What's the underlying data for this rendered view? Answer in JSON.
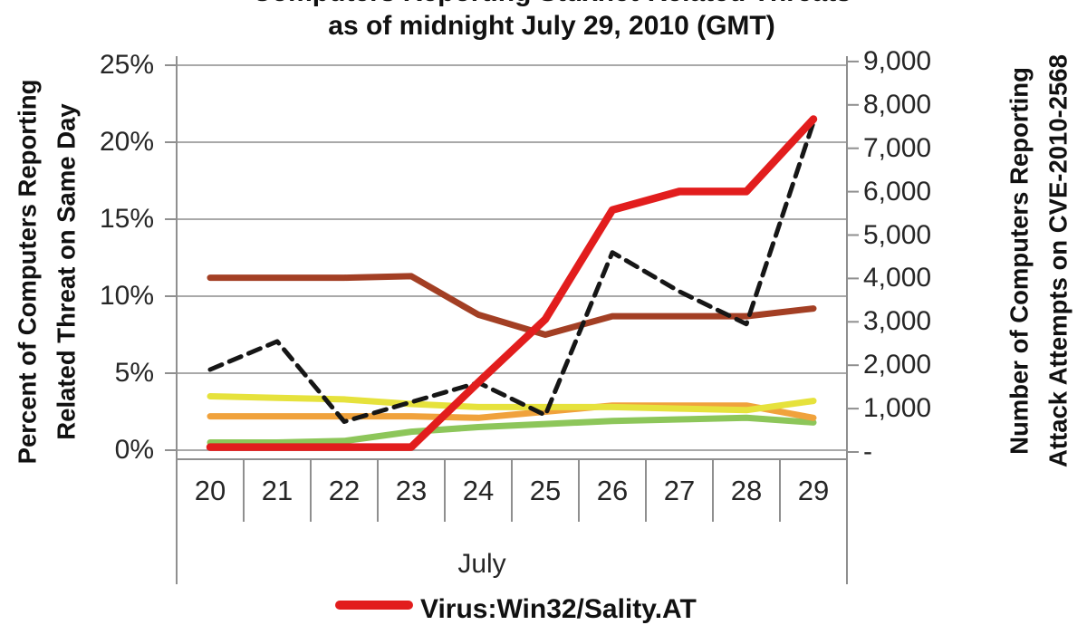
{
  "title_clipped": "Computers Reporting Stuxnet-Related Threats",
  "subtitle": "as of midnight July 29, 2010 (GMT)",
  "left_axis": {
    "title_line1": "Percent of Computers Reporting",
    "title_line2": "Related Threat on Same Day",
    "ticks": [
      "25%",
      "20%",
      "15%",
      "10%",
      "5%",
      "0%"
    ]
  },
  "right_axis": {
    "title_line1": "Number of Computers Reporting",
    "title_line2": "Attack Attempts on CVE-2010-2568",
    "ticks": [
      "9,000",
      "8,000",
      "7,000",
      "6,000",
      "5,000",
      "4,000",
      "3,000",
      "2,000",
      "1,000",
      "-"
    ]
  },
  "x_axis": {
    "labels": [
      "20",
      "21",
      "22",
      "23",
      "24",
      "25",
      "26",
      "27",
      "28",
      "29"
    ],
    "title": "July"
  },
  "legend": {
    "items": [
      {
        "label": "Virus:Win32/Sality.AT",
        "color": "#E21D1D"
      }
    ]
  },
  "colors": {
    "red": "#E21D1D",
    "brown": "#A33F24",
    "orange": "#F0A23C",
    "yellow": "#E6E23C",
    "green": "#8DC65A",
    "dashed_black": "#161616",
    "gridline": "#A9A9A9",
    "axis": "#8F8F8F",
    "text": "#1A1A1A"
  },
  "chart_data": {
    "type": "line",
    "x": [
      20,
      21,
      22,
      23,
      24,
      25,
      26,
      27,
      28,
      29
    ],
    "xlabel": "July",
    "left_ylabel": "Percent of Computers Reporting Related Threat on Same Day",
    "right_ylabel": "Number of Computers Reporting Attack Attempts on CVE-2010-2568",
    "left_ylim": [
      0,
      25
    ],
    "right_ylim": [
      0,
      9000
    ],
    "grid": true,
    "legend_position": "bottom",
    "series": [
      {
        "name": "unlabeled-green",
        "axis": "left",
        "style": "solid",
        "color": "#8DC65A",
        "width": 7,
        "values": [
          0.5,
          0.5,
          0.6,
          1.2,
          1.5,
          1.7,
          1.9,
          2.0,
          2.1,
          1.8
        ]
      },
      {
        "name": "unlabeled-orange",
        "axis": "left",
        "style": "solid",
        "color": "#F0A23C",
        "width": 7,
        "values": [
          2.2,
          2.2,
          2.2,
          2.2,
          2.1,
          2.5,
          2.9,
          2.9,
          2.9,
          2.1
        ]
      },
      {
        "name": "unlabeled-yellow",
        "axis": "left",
        "style": "solid",
        "color": "#E6E23C",
        "width": 7,
        "values": [
          3.5,
          3.4,
          3.3,
          3.0,
          2.8,
          2.8,
          2.8,
          2.7,
          2.6,
          3.2
        ]
      },
      {
        "name": "unlabeled-brown",
        "axis": "left",
        "style": "solid",
        "color": "#A33F24",
        "width": 7,
        "values": [
          11.2,
          11.2,
          11.2,
          11.3,
          8.8,
          7.5,
          8.7,
          8.7,
          8.7,
          9.2
        ]
      },
      {
        "name": "unlabeled-dashed-black",
        "axis": "right",
        "style": "dashed",
        "color": "#161616",
        "width": 5,
        "values": [
          1900,
          2550,
          700,
          1150,
          1600,
          850,
          4600,
          3700,
          2950,
          7600
        ]
      },
      {
        "name": "Virus:Win32/Sality.AT",
        "axis": "left",
        "style": "solid",
        "color": "#E21D1D",
        "width": 8.5,
        "values": [
          0.2,
          0.2,
          0.2,
          0.2,
          4.4,
          8.5,
          15.6,
          16.8,
          16.8,
          21.5
        ]
      }
    ]
  }
}
